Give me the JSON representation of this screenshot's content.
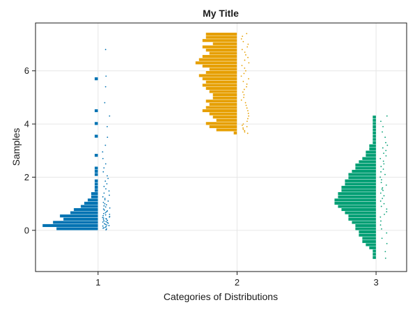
{
  "chart_data": {
    "type": "bar",
    "orientation": "horizontal-histogram-with-jittered-points",
    "title": "My Title",
    "xlabel": "Categories of Distributions",
    "ylabel": "Samples",
    "xlim": [
      0.55,
      3.22
    ],
    "ylim": [
      -1.55,
      7.8
    ],
    "xticks": [
      1,
      2,
      3
    ],
    "yticks": [
      0,
      2,
      4,
      6
    ],
    "grid": true,
    "bin_width": 0.12,
    "series": [
      {
        "category": 1,
        "color": "#0072b2",
        "bin_start": 0.0,
        "counts": [
          12,
          16,
          13,
          10,
          11,
          8,
          7,
          5,
          4,
          3,
          2,
          2,
          1,
          1,
          1,
          1,
          0,
          1,
          1,
          1,
          0,
          0,
          0,
          1,
          0,
          0,
          0,
          0,
          0,
          1,
          0,
          0,
          0,
          1,
          0,
          0,
          0,
          1,
          0,
          0,
          0,
          0,
          0,
          0,
          0,
          0,
          0,
          1
        ],
        "points": [
          0.02,
          0.05,
          0.08,
          0.1,
          0.12,
          0.14,
          0.16,
          0.18,
          0.2,
          0.22,
          0.25,
          0.27,
          0.29,
          0.31,
          0.33,
          0.35,
          0.37,
          0.4,
          0.42,
          0.44,
          0.46,
          0.48,
          0.5,
          0.52,
          0.55,
          0.58,
          0.6,
          0.63,
          0.66,
          0.7,
          0.73,
          0.76,
          0.8,
          0.84,
          0.88,
          0.92,
          0.96,
          1.0,
          1.05,
          1.1,
          1.15,
          1.2,
          1.26,
          1.32,
          1.4,
          1.48,
          1.56,
          1.65,
          1.75,
          1.85,
          1.95,
          2.05,
          2.2,
          2.35,
          2.5,
          2.7,
          2.95,
          3.2,
          3.5,
          3.9,
          4.3,
          4.8,
          5.4,
          5.8,
          6.8
        ]
      },
      {
        "category": 2,
        "color": "#e69f00",
        "bin_start": 3.6,
        "counts": [
          1,
          6,
          8,
          9,
          6,
          7,
          8,
          10,
          9,
          8,
          9,
          7,
          7,
          8,
          9,
          10,
          9,
          10,
          11,
          9,
          8,
          10,
          12,
          11,
          10,
          8,
          9,
          10,
          7,
          10,
          9,
          9
        ],
        "points": [
          3.65,
          3.7,
          3.75,
          3.8,
          3.85,
          3.9,
          3.95,
          4.0,
          4.1,
          4.2,
          4.3,
          4.4,
          4.5,
          4.6,
          4.7,
          4.8,
          4.9,
          5.0,
          5.1,
          5.2,
          5.3,
          5.4,
          5.5,
          5.6,
          5.7,
          5.8,
          5.9,
          6.0,
          6.1,
          6.2,
          6.3,
          6.4,
          6.5,
          6.6,
          6.7,
          6.8,
          6.9,
          7.0,
          7.1,
          7.2,
          7.3,
          7.4
        ]
      },
      {
        "category": 3,
        "color": "#009e73",
        "bin_start": -1.08,
        "counts": [
          1,
          1,
          1,
          2,
          3,
          4,
          4,
          5,
          5,
          6,
          6,
          7,
          8,
          8,
          9,
          10,
          11,
          12,
          12,
          11,
          11,
          10,
          10,
          9,
          9,
          8,
          8,
          7,
          6,
          6,
          5,
          4,
          3,
          3,
          2,
          2,
          1,
          1,
          1,
          1,
          1,
          1,
          1,
          1,
          1
        ],
        "points": [
          -1.05,
          -0.8,
          -0.5,
          -0.3,
          -0.1,
          0.05,
          0.2,
          0.35,
          0.5,
          0.6,
          0.7,
          0.8,
          0.9,
          1.0,
          1.1,
          1.2,
          1.3,
          1.4,
          1.5,
          1.55,
          1.6,
          1.7,
          1.8,
          1.9,
          2.0,
          2.1,
          2.2,
          2.3,
          2.4,
          2.5,
          2.6,
          2.7,
          2.8,
          2.9,
          3.0,
          3.1,
          3.2,
          3.3,
          3.5,
          3.7,
          3.9,
          4.1,
          4.3
        ]
      }
    ]
  }
}
